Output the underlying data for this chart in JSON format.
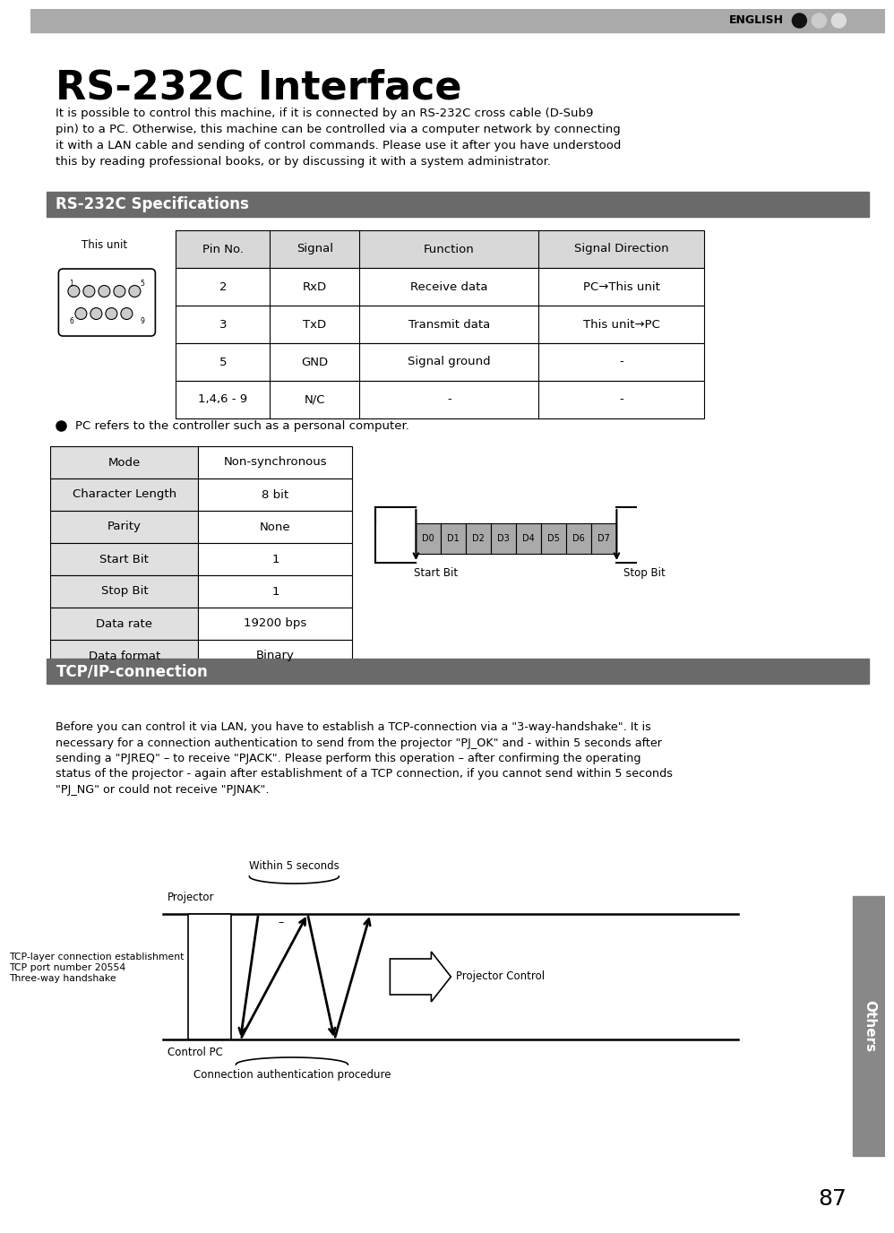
{
  "page_bg": "#ffffff",
  "header_bar_color": "#aaaaaa",
  "section_bar_color": "#6a6a6a",
  "header_text": "ENGLISH",
  "main_title": "RS-232C Interface",
  "intro_text": "It is possible to control this machine, if it is connected by an RS-232C cross cable (D-Sub9\npin) to a PC. Otherwise, this machine can be controlled via a computer network by connecting\nit with a LAN cable and sending of control commands. Please use it after you have understood\nthis by reading professional books, or by discussing it with a system administrator.",
  "section1_title": "RS-232C Specifications",
  "table1_headers": [
    "Pin No.",
    "Signal",
    "Function",
    "Signal Direction"
  ],
  "table1_rows": [
    [
      "2",
      "RxD",
      "Receive data",
      "PC→This unit"
    ],
    [
      "3",
      "TxD",
      "Transmit data",
      "This unit→PC"
    ],
    [
      "5",
      "GND",
      "Signal ground",
      "-"
    ],
    [
      "1,4,6 - 9",
      "N/C",
      "-",
      "-"
    ]
  ],
  "bullet_text": "PC refers to the controller such as a personal computer.",
  "table2_rows": [
    [
      "Mode",
      "Non-synchronous"
    ],
    [
      "Character Length",
      "8 bit"
    ],
    [
      "Parity",
      "None"
    ],
    [
      "Start Bit",
      "1"
    ],
    [
      "Stop Bit",
      "1"
    ],
    [
      "Data rate",
      "19200 bps"
    ],
    [
      "Data format",
      "Binary"
    ]
  ],
  "data_bits": [
    "D0",
    "D1",
    "D2",
    "D3",
    "D4",
    "D5",
    "D6",
    "D7"
  ],
  "startbit_label": "Start Bit",
  "stopbit_label": "Stop Bit",
  "section2_title": "TCP/IP-connection",
  "tcp_text": "Before you can control it via LAN, you have to establish a TCP-connection via a \"3-way-handshake\". It is\nnecessary for a connection authentication to send from the projector \"PJ_OK\" and - within 5 seconds after\nsending a \"PJREQ\" – to receive \"PJACK\". Please perform this operation – after confirming the operating\nstatus of the projector - again after establishment of a TCP connection, if you cannot send within 5 seconds\n\"PJ_NG\" or could not receive \"PJNAK\".",
  "within5_label": "Within 5 seconds",
  "projector_label": "Projector",
  "tcp_layer_label": "TCP-layer connection establishment\nTCP port number 20554\nThree-way handshake",
  "control_pc_label": "Control PC",
  "conn_auth_label": "Connection authentication procedure",
  "proj_control_label": "Projector Control",
  "others_label": "Others",
  "page_number": "87",
  "sidebar_color": "#888888"
}
